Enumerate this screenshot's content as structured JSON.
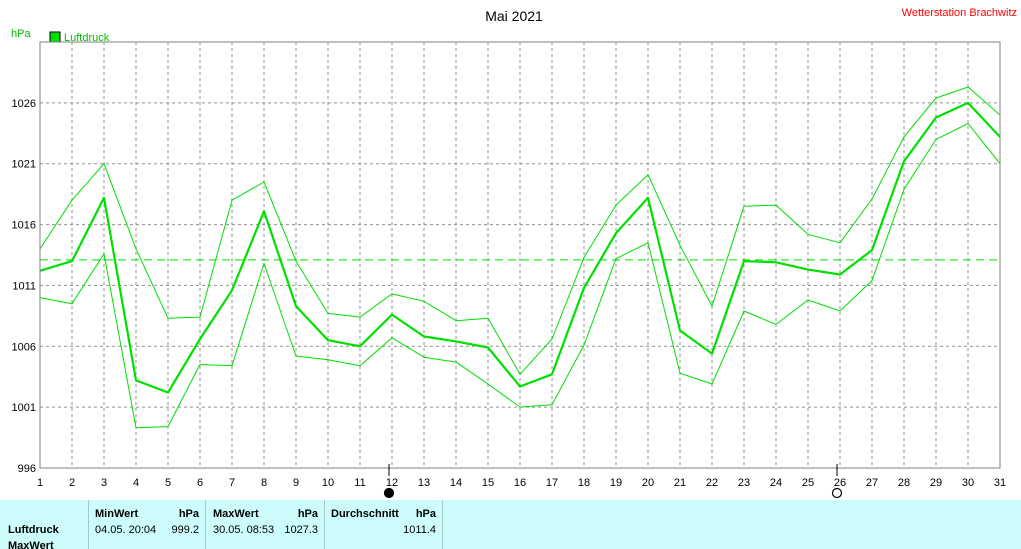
{
  "chart_data": {
    "type": "line",
    "title": "Mai 2021",
    "station": "Wetterstation Brachwitz",
    "unit_label": "hPa",
    "ylim": [
      996,
      1031
    ],
    "yticks": [
      "996",
      "1001",
      "1006",
      "1011",
      "1016",
      "1021",
      "1026"
    ],
    "ytick_values": [
      996,
      1001,
      1006,
      1011,
      1016,
      1021,
      1026
    ],
    "x": [
      "1",
      "2",
      "3",
      "4",
      "5",
      "6",
      "7",
      "8",
      "9",
      "10",
      "11",
      "12",
      "13",
      "14",
      "15",
      "16",
      "17",
      "18",
      "19",
      "20",
      "21",
      "22",
      "23",
      "24",
      "25",
      "26",
      "27",
      "28",
      "29",
      "30",
      "31"
    ],
    "series": [
      {
        "name": "Luftdruck",
        "color": "#00e000",
        "values": [
          1012.2,
          1013.0,
          1018.2,
          1003.2,
          1002.2,
          1006.6,
          1010.6,
          1017.1,
          1009.3,
          1006.5,
          1006.0,
          1008.6,
          1006.8,
          1006.4,
          1005.9,
          1002.7,
          1003.7,
          1010.8,
          1015.3,
          1018.2,
          1007.3,
          1005.4,
          1013.0,
          1012.9,
          1012.3,
          1011.9,
          1013.9,
          1021.2,
          1024.8,
          1026.0,
          1023.2
        ]
      },
      {
        "name": "MaxWert",
        "color": "#00e000",
        "values": [
          1014.0,
          1018.0,
          1021.0,
          1014.0,
          1008.3,
          1008.4,
          1018.0,
          1019.5,
          1013.0,
          1008.7,
          1008.4,
          1010.3,
          1009.7,
          1008.1,
          1008.3,
          1003.7,
          1006.6,
          1013.3,
          1017.6,
          1020.1,
          1014.3,
          1009.3,
          1017.5,
          1017.6,
          1015.2,
          1014.5,
          1018.1,
          1023.2,
          1026.4,
          1027.3,
          1025.0
        ]
      },
      {
        "name": "MinWert",
        "color": "#00e000",
        "values": [
          1010.0,
          1009.5,
          1013.6,
          999.3,
          999.4,
          1004.5,
          1004.4,
          1012.8,
          1005.2,
          1004.9,
          1004.4,
          1006.7,
          1005.1,
          1004.7,
          1002.9,
          1001.0,
          1001.2,
          1006.1,
          1013.2,
          1014.5,
          1003.8,
          1002.9,
          1008.9,
          1007.8,
          1009.8,
          1008.9,
          1011.4,
          1018.9,
          1023.0,
          1024.3,
          1021.0
        ]
      },
      {
        "name": "Durchschnitt",
        "color": "#00e000",
        "values": [
          1013.1,
          1013.1,
          1013.1,
          1013.1,
          1013.1,
          1013.1,
          1013.1,
          1013.1,
          1013.1,
          1013.1,
          1013.1,
          1013.1,
          1013.1,
          1013.1,
          1013.1,
          1013.1,
          1013.1,
          1013.1,
          1013.1,
          1013.1,
          1013.1,
          1013.1,
          1013.1,
          1013.1,
          1013.1,
          1013.1,
          1013.1,
          1013.1,
          1013.1,
          1013.1,
          1013.1
        ]
      }
    ],
    "legend": {
      "label": "Luftdruck",
      "color": "#00e000",
      "placement": "top-left"
    },
    "moon_phases": [
      {
        "day": 12,
        "phase": "new-moon-icon"
      },
      {
        "day": 26,
        "phase": "full-moon-icon"
      }
    ],
    "grid": true
  },
  "summary": {
    "row_labels": [
      "Luftdruck",
      "MaxWert"
    ],
    "min": {
      "header": "MinWert",
      "unit": "hPa",
      "datetime": "04.05.  20:04",
      "value": "999.2"
    },
    "max": {
      "header": "MaxWert",
      "unit": "hPa",
      "datetime": "30.05.  08:53",
      "value": "1027.3"
    },
    "avg": {
      "header": "Durchschnitt",
      "unit": "hPa",
      "value": "1011.4"
    }
  }
}
